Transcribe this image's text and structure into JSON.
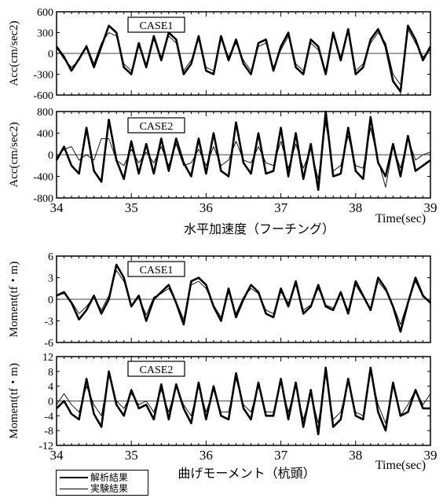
{
  "legend": {
    "analysis_label": "解析結果",
    "experiment_label": "実験結果"
  },
  "chart_data": [
    {
      "type": "line",
      "panel": "acc-case1",
      "tag": "CASE1",
      "ylabel": "Acc(cm/sec2)",
      "xlim": [
        34,
        39
      ],
      "ylim": [
        -600,
        600
      ],
      "yticks": [
        -600,
        -300,
        0,
        300,
        600
      ],
      "zero_line": true,
      "series": [
        {
          "name": "解析結果",
          "style": "thick",
          "x": [
            34.0,
            34.1,
            34.2,
            34.3,
            34.4,
            34.5,
            34.6,
            34.7,
            34.8,
            34.9,
            35.0,
            35.1,
            35.2,
            35.3,
            35.4,
            35.5,
            35.6,
            35.7,
            35.8,
            35.9,
            36.0,
            36.1,
            36.2,
            36.3,
            36.4,
            36.5,
            36.6,
            36.7,
            36.8,
            36.9,
            37.0,
            37.1,
            37.2,
            37.3,
            37.4,
            37.5,
            37.6,
            37.7,
            37.8,
            37.9,
            38.0,
            38.1,
            38.2,
            38.3,
            38.4,
            38.5,
            38.6,
            38.7,
            38.8,
            38.9,
            39.0
          ],
          "y": [
            100,
            -50,
            -250,
            -80,
            100,
            -200,
            100,
            400,
            300,
            -200,
            -300,
            150,
            -200,
            250,
            -100,
            300,
            200,
            -300,
            -150,
            250,
            -250,
            -300,
            250,
            -100,
            200,
            -150,
            -300,
            150,
            200,
            -250,
            100,
            300,
            -200,
            -300,
            200,
            100,
            -300,
            300,
            -100,
            350,
            -300,
            -200,
            200,
            350,
            100,
            -400,
            -550,
            400,
            200,
            -100,
            100
          ]
        },
        {
          "name": "実験結果",
          "style": "thin",
          "x": [
            34.0,
            34.1,
            34.2,
            34.3,
            34.4,
            34.5,
            34.6,
            34.7,
            34.8,
            34.9,
            35.0,
            35.1,
            35.2,
            35.3,
            35.4,
            35.5,
            35.6,
            35.7,
            35.8,
            35.9,
            36.0,
            36.1,
            36.2,
            36.3,
            36.4,
            36.5,
            36.6,
            36.7,
            36.8,
            36.9,
            37.0,
            37.1,
            37.2,
            37.3,
            37.4,
            37.5,
            37.6,
            37.7,
            37.8,
            37.9,
            38.0,
            38.1,
            38.2,
            38.3,
            38.4,
            38.5,
            38.6,
            38.7,
            38.8,
            38.9,
            39.0
          ],
          "y": [
            80,
            -80,
            -200,
            -100,
            120,
            -150,
            150,
            300,
            250,
            -150,
            -250,
            100,
            -150,
            200,
            -50,
            250,
            150,
            -250,
            -100,
            200,
            -200,
            -250,
            200,
            -50,
            150,
            -100,
            -250,
            100,
            150,
            -200,
            50,
            250,
            -150,
            -250,
            150,
            50,
            -250,
            250,
            -50,
            300,
            -250,
            -150,
            150,
            300,
            150,
            -300,
            -450,
            350,
            150,
            -50,
            50
          ]
        }
      ]
    },
    {
      "type": "line",
      "panel": "acc-case2",
      "tag": "CASE2",
      "ylabel": "Acc(cm/sec2)",
      "xlim": [
        34,
        39
      ],
      "ylim": [
        -800,
        800
      ],
      "yticks": [
        -800,
        -400,
        0,
        400,
        800
      ],
      "xticks": [
        34,
        35,
        36,
        37,
        38,
        39
      ],
      "xlabel": "水平加速度（フーチング）",
      "xunit": "Time(sec)",
      "zero_line": true,
      "series": [
        {
          "name": "解析結果",
          "style": "thick",
          "x": [
            34.0,
            34.1,
            34.2,
            34.3,
            34.4,
            34.5,
            34.6,
            34.7,
            34.8,
            34.9,
            35.0,
            35.1,
            35.2,
            35.3,
            35.4,
            35.5,
            35.6,
            35.7,
            35.8,
            35.9,
            36.0,
            36.1,
            36.2,
            36.3,
            36.4,
            36.5,
            36.6,
            36.7,
            36.8,
            36.9,
            37.0,
            37.1,
            37.2,
            37.3,
            37.4,
            37.5,
            37.6,
            37.7,
            37.8,
            37.9,
            38.0,
            38.1,
            38.2,
            38.3,
            38.4,
            38.5,
            38.6,
            38.7,
            38.8,
            38.9,
            39.0
          ],
          "y": [
            -100,
            150,
            -200,
            -350,
            500,
            -300,
            -500,
            650,
            -100,
            -450,
            250,
            -350,
            200,
            -350,
            300,
            -300,
            300,
            -150,
            -400,
            300,
            -350,
            400,
            -300,
            -400,
            600,
            -150,
            -350,
            400,
            -350,
            -300,
            500,
            -400,
            400,
            -450,
            200,
            -650,
            800,
            -400,
            -350,
            500,
            -300,
            -450,
            700,
            -150,
            -400,
            200,
            -400,
            350,
            -300,
            -200,
            -100
          ]
        },
        {
          "name": "実験結果",
          "style": "thin",
          "x": [
            34.0,
            34.1,
            34.2,
            34.3,
            34.4,
            34.5,
            34.6,
            34.7,
            34.8,
            34.9,
            35.0,
            35.1,
            35.2,
            35.3,
            35.4,
            35.5,
            35.6,
            35.7,
            35.8,
            35.9,
            36.0,
            36.1,
            36.2,
            36.3,
            36.4,
            36.5,
            36.6,
            36.7,
            36.8,
            36.9,
            37.0,
            37.1,
            37.2,
            37.3,
            37.4,
            37.5,
            37.6,
            37.7,
            37.8,
            37.9,
            38.0,
            38.1,
            38.2,
            38.3,
            38.4,
            38.5,
            38.6,
            38.7,
            38.8,
            38.9,
            39.0
          ],
          "y": [
            -50,
            100,
            150,
            -100,
            0,
            -100,
            300,
            300,
            -100,
            -200,
            100,
            -150,
            50,
            -150,
            150,
            -200,
            200,
            -200,
            -150,
            100,
            -200,
            150,
            -200,
            -100,
            250,
            -100,
            -150,
            150,
            -150,
            -200,
            250,
            -250,
            200,
            -250,
            100,
            -450,
            600,
            -300,
            -200,
            350,
            -200,
            -250,
            500,
            -100,
            -600,
            150,
            -250,
            300,
            -100,
            0,
            50
          ]
        }
      ]
    },
    {
      "type": "line",
      "panel": "moment-case1",
      "tag": "CASE1",
      "ylabel": "Moment(tf・m)",
      "xlim": [
        34,
        39
      ],
      "ylim": [
        -6,
        6
      ],
      "yticks": [
        -6,
        -3,
        0,
        3,
        6
      ],
      "zero_line": true,
      "series": [
        {
          "name": "解析結果",
          "style": "thick",
          "x": [
            34.0,
            34.1,
            34.2,
            34.3,
            34.4,
            34.5,
            34.6,
            34.7,
            34.8,
            34.9,
            35.0,
            35.1,
            35.2,
            35.3,
            35.4,
            35.5,
            35.6,
            35.7,
            35.8,
            35.9,
            36.0,
            36.1,
            36.2,
            36.3,
            36.4,
            36.5,
            36.6,
            36.7,
            36.8,
            36.9,
            37.0,
            37.1,
            37.2,
            37.3,
            37.4,
            37.5,
            37.6,
            37.7,
            37.8,
            37.9,
            38.0,
            38.1,
            38.2,
            38.3,
            38.4,
            38.5,
            38.6,
            38.7,
            38.8,
            38.9,
            39.0
          ],
          "y": [
            0.5,
            1,
            -0.5,
            -2.8,
            -1.5,
            0.5,
            -2,
            0,
            4.8,
            3,
            -1,
            0.5,
            -3,
            0,
            1,
            2,
            -0.5,
            -3.5,
            2.5,
            3,
            2,
            -1,
            -3,
            1.5,
            -2.5,
            0,
            2,
            1,
            -2,
            -2.5,
            1.5,
            -1,
            2.5,
            -2,
            -1,
            2,
            -1,
            -1.5,
            1,
            -2,
            2.5,
            0.5,
            -1.5,
            3,
            1.5,
            -1,
            -4.5,
            -0.5,
            3,
            0.5,
            -0.5
          ]
        },
        {
          "name": "実験結果",
          "style": "thin",
          "x": [
            34.0,
            34.1,
            34.2,
            34.3,
            34.4,
            34.5,
            34.6,
            34.7,
            34.8,
            34.9,
            35.0,
            35.1,
            35.2,
            35.3,
            35.4,
            35.5,
            35.6,
            35.7,
            35.8,
            35.9,
            36.0,
            36.1,
            36.2,
            36.3,
            36.4,
            36.5,
            36.6,
            36.7,
            36.8,
            36.9,
            37.0,
            37.1,
            37.2,
            37.3,
            37.4,
            37.5,
            37.6,
            37.7,
            37.8,
            37.9,
            38.0,
            38.1,
            38.2,
            38.3,
            38.4,
            38.5,
            38.6,
            38.7,
            38.8,
            38.9,
            39.0
          ],
          "y": [
            0.5,
            0.8,
            -0.3,
            -2,
            -1,
            0.3,
            -1.5,
            0.5,
            4,
            2.5,
            -0.8,
            0.3,
            -2.2,
            0.3,
            0.8,
            1.5,
            -0.3,
            -2.8,
            2,
            2.5,
            1.5,
            -0.8,
            -2.5,
            1,
            -2,
            0.3,
            1.5,
            0.8,
            -1.5,
            -2,
            1,
            -0.5,
            2,
            -1.5,
            -0.8,
            1.5,
            -0.8,
            -1.2,
            0.8,
            -1.5,
            2,
            0.3,
            -1.2,
            2.5,
            1.2,
            -0.8,
            -3.5,
            -0.3,
            2.5,
            0.3,
            -0.3
          ]
        }
      ]
    },
    {
      "type": "line",
      "panel": "moment-case2",
      "tag": "CASE2",
      "ylabel": "Moment(tf・m)",
      "xlim": [
        34,
        39
      ],
      "ylim": [
        -12,
        12
      ],
      "yticks": [
        -12,
        -8,
        -4,
        0,
        4,
        8,
        12
      ],
      "xticks": [
        34,
        35,
        36,
        37,
        38,
        39
      ],
      "xlabel": "曲げモーメント（杭頭）",
      "xunit": "Time(sec)",
      "zero_line": true,
      "series": [
        {
          "name": "解析結果",
          "style": "thick",
          "x": [
            34.0,
            34.1,
            34.2,
            34.3,
            34.4,
            34.5,
            34.6,
            34.7,
            34.8,
            34.9,
            35.0,
            35.1,
            35.2,
            35.3,
            35.4,
            35.5,
            35.6,
            35.7,
            35.8,
            35.9,
            36.0,
            36.1,
            36.2,
            36.3,
            36.4,
            36.5,
            36.6,
            36.7,
            36.8,
            36.9,
            37.0,
            37.1,
            37.2,
            37.3,
            37.4,
            37.5,
            37.6,
            37.7,
            37.8,
            37.9,
            38.0,
            38.1,
            38.2,
            38.3,
            38.4,
            38.5,
            38.6,
            38.7,
            38.8,
            38.9,
            39.0
          ],
          "y": [
            -2,
            0,
            -3.5,
            -5,
            6,
            -3.5,
            -7,
            8,
            -1,
            -4,
            3,
            -2,
            -1,
            -5,
            4.5,
            -5,
            4.5,
            -2,
            -6,
            5,
            -5,
            4,
            -4,
            -5,
            7.5,
            -2,
            -5,
            5,
            -4,
            -4,
            6,
            -5,
            5,
            -7,
            3,
            -9,
            9,
            -7,
            -5,
            6,
            -4,
            -5,
            9,
            -3,
            -8,
            5,
            -4,
            -3,
            3,
            -2,
            -2
          ]
        },
        {
          "name": "実験結果",
          "style": "thin",
          "x": [
            34.0,
            34.1,
            34.2,
            34.3,
            34.4,
            34.5,
            34.6,
            34.7,
            34.8,
            34.9,
            35.0,
            35.1,
            35.2,
            35.3,
            35.4,
            35.5,
            35.6,
            35.7,
            35.8,
            35.9,
            36.0,
            36.1,
            36.2,
            36.3,
            36.4,
            36.5,
            36.6,
            36.7,
            36.8,
            36.9,
            37.0,
            37.1,
            37.2,
            37.3,
            37.4,
            37.5,
            37.6,
            37.7,
            37.8,
            37.9,
            38.0,
            38.1,
            38.2,
            38.3,
            38.4,
            38.5,
            38.6,
            38.7,
            38.8,
            38.9,
            39.0
          ],
          "y": [
            -1,
            2,
            -1,
            -3,
            4,
            -1,
            -4,
            7,
            0,
            -2,
            2,
            -1,
            0,
            -3,
            3,
            -3,
            4,
            -1,
            -4,
            4,
            -3,
            3,
            -3,
            -3,
            6,
            -1,
            -3,
            4,
            -3,
            -3,
            5,
            -3,
            4,
            -5,
            2,
            -6,
            7,
            -5,
            -3,
            5,
            -3,
            -4,
            8,
            -1,
            -6,
            4,
            -4,
            -1,
            3,
            -1,
            2
          ]
        }
      ]
    }
  ]
}
